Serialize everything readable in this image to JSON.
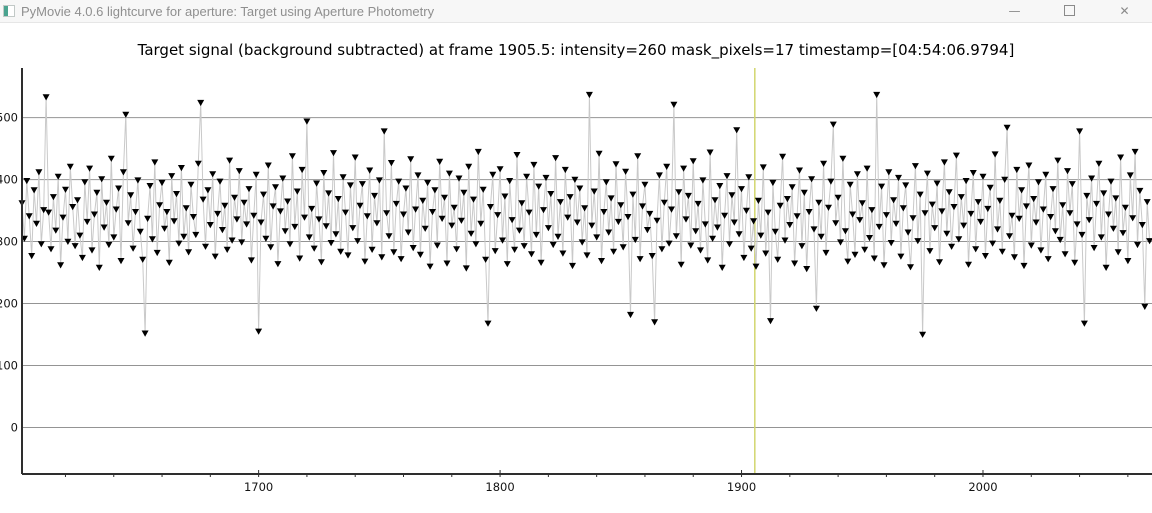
{
  "window": {
    "title": "PyMovie 4.0.6 lightcurve for aperture: Target using Aperture Photometry",
    "controls": {
      "minimize": "—",
      "close": "✕"
    }
  },
  "chart_data": {
    "type": "line",
    "title": "Target signal (background subtracted) at frame 1905.5: intensity=260 mask_pixels=17 timestamp=[04:54:06.9794]",
    "xlabel": "",
    "ylabel": "",
    "marker": "triangle-down",
    "marker_color": "#000000",
    "line_color": "#c9c9c9",
    "grid_color": "#949494",
    "grid": "horizontal-only",
    "legend": "none",
    "cursor_frame": 1905.5,
    "cursor_color": "#d2d66e",
    "xlim": [
      1602,
      2070
    ],
    "ylim": [
      -75,
      580
    ],
    "x_ticks_major": [
      1700,
      1800,
      1900,
      2000
    ],
    "x_minor_step": 20,
    "y_ticks": [
      0,
      100,
      200,
      300,
      400,
      500
    ],
    "x_start": 1602,
    "x_step": 1,
    "values": [
      362,
      305,
      398,
      341,
      277,
      383,
      329,
      412,
      296,
      351,
      533,
      347,
      288,
      372,
      318,
      405,
      262,
      339,
      384,
      300,
      421,
      356,
      293,
      367,
      310,
      274,
      396,
      332,
      418,
      286,
      344,
      379,
      258,
      401,
      323,
      363,
      295,
      434,
      307,
      352,
      386,
      269,
      412,
      505,
      330,
      375,
      289,
      348,
      399,
      316,
      271,
      152,
      337,
      390,
      304,
      428,
      282,
      359,
      395,
      321,
      348,
      266,
      406,
      333,
      377,
      297,
      419,
      308,
      354,
      283,
      392,
      340,
      311,
      426,
      524,
      368,
      292,
      383,
      327,
      409,
      276,
      345,
      397,
      319,
      358,
      287,
      431,
      302,
      371,
      336,
      414,
      299,
      363,
      328,
      385,
      270,
      342,
      408,
      155,
      331,
      376,
      305,
      423,
      291,
      357,
      388,
      264,
      349,
      402,
      317,
      365,
      296,
      438,
      324,
      381,
      273,
      416,
      339,
      494,
      307,
      353,
      289,
      394,
      336,
      267,
      411,
      325,
      378,
      298,
      443,
      312,
      369,
      284,
      404,
      347,
      278,
      391,
      322,
      436,
      301,
      358,
      393,
      268,
      341,
      415,
      287,
      374,
      330,
      399,
      275,
      478,
      346,
      309,
      427,
      283,
      361,
      397,
      272,
      344,
      386,
      315,
      433,
      290,
      352,
      407,
      279,
      366,
      321,
      395,
      260,
      348,
      383,
      294,
      429,
      337,
      371,
      265,
      410,
      326,
      355,
      288,
      402,
      334,
      379,
      257,
      421,
      313,
      368,
      296,
      445,
      329,
      384,
      271,
      168,
      356,
      408,
      285,
      343,
      417,
      302,
      373,
      264,
      398,
      335,
      287,
      440,
      318,
      362,
      293,
      405,
      347,
      280,
      424,
      311,
      389,
      266,
      351,
      403,
      322,
      377,
      295,
      435,
      308,
      364,
      281,
      416,
      339,
      372,
      261,
      400,
      331,
      386,
      299,
      354,
      278,
      537,
      326,
      381,
      307,
      442,
      269,
      348,
      396,
      315,
      370,
      284,
      425,
      332,
      359,
      291,
      413,
      340,
      182,
      376,
      303,
      438,
      272,
      357,
      392,
      319,
      345,
      277,
      170,
      334,
      407,
      288,
      363,
      421,
      297,
      352,
      521,
      309,
      380,
      263,
      418,
      336,
      374,
      294,
      430,
      317,
      361,
      286,
      399,
      328,
      270,
      444,
      305,
      367,
      323,
      390,
      258,
      342,
      406,
      296,
      375,
      331,
      480,
      312,
      385,
      274,
      350,
      404,
      289,
      333,
      260,
      366,
      310,
      420,
      281,
      347,
      172,
      395,
      316,
      271,
      358,
      437,
      302,
      369,
      327,
      388,
      265,
      341,
      415,
      293,
      379,
      256,
      348,
      401,
      320,
      192,
      363,
      308,
      426,
      282,
      355,
      397,
      489,
      330,
      371,
      299,
      434,
      317,
      268,
      392,
      344,
      279,
      409,
      335,
      362,
      287,
      418,
      306,
      351,
      273,
      537,
      324,
      389,
      262,
      343,
      412,
      298,
      367,
      329,
      403,
      276,
      354,
      391,
      315,
      259,
      338,
      422,
      301,
      376,
      150,
      346,
      410,
      285,
      360,
      322,
      394,
      267,
      349,
      428,
      313,
      380,
      292,
      356,
      439,
      304,
      372,
      326,
      398,
      263,
      345,
      411,
      288,
      364,
      332,
      405,
      277,
      353,
      387,
      297,
      441,
      320,
      366,
      284,
      400,
      484,
      309,
      342,
      275,
      416,
      337,
      383,
      261,
      357,
      423,
      294,
      369,
      331,
      396,
      286,
      352,
      408,
      272,
      340,
      385,
      317,
      431,
      303,
      359,
      280,
      414,
      346,
      393,
      266,
      328,
      478,
      311,
      168,
      374,
      335,
      402,
      290,
      361,
      426,
      307,
      378,
      258,
      344,
      397,
      321,
      370,
      283,
      436,
      314,
      355,
      269,
      407,
      338,
      445,
      295,
      382,
      327,
      195,
      364,
      301
    ]
  }
}
